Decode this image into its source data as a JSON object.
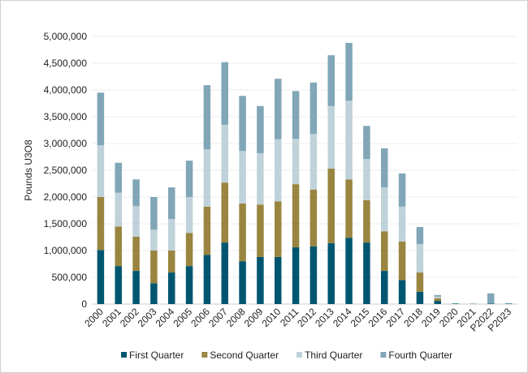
{
  "chart_data": {
    "type": "bar",
    "stacked": true,
    "title": "",
    "xlabel": "",
    "ylabel": "Pounds U3O8",
    "ylim": [
      0,
      5000000
    ],
    "yticks": [
      0,
      500000,
      1000000,
      1500000,
      2000000,
      2500000,
      3000000,
      3500000,
      4000000,
      4500000,
      5000000
    ],
    "ytick_labels": [
      "0",
      "500,000",
      "1,000,000",
      "1,500,000",
      "2,000,000",
      "2,500,000",
      "3,000,000",
      "3,500,000",
      "4,000,000",
      "4,500,000",
      "5,000,000"
    ],
    "grid": true,
    "legend_position": "bottom",
    "categories": [
      "2000",
      "2001",
      "2002",
      "2003",
      "2004",
      "2005",
      "2006",
      "2007",
      "2008",
      "2009",
      "2010",
      "2011",
      "2012",
      "2013",
      "2014",
      "2015",
      "2016",
      "2017",
      "2018",
      "2019",
      "2020",
      "2021",
      "P2022",
      "P2023"
    ],
    "series": [
      {
        "name": "First Quarter",
        "color": "#005670",
        "values": [
          1010000,
          710000,
          620000,
          390000,
          590000,
          710000,
          920000,
          1150000,
          800000,
          880000,
          880000,
          1060000,
          1080000,
          1140000,
          1240000,
          1150000,
          620000,
          450000,
          230000,
          60000,
          10000,
          0,
          10000,
          10000
        ]
      },
      {
        "name": "Second Quarter",
        "color": "#9A8540",
        "values": [
          990000,
          740000,
          640000,
          610000,
          410000,
          620000,
          900000,
          1120000,
          1080000,
          980000,
          1040000,
          1180000,
          1060000,
          1390000,
          1090000,
          790000,
          740000,
          720000,
          360000,
          50000,
          0,
          0,
          0,
          0
        ]
      },
      {
        "name": "Third Quarter",
        "color": "#BFD2D9",
        "values": [
          970000,
          630000,
          570000,
          390000,
          590000,
          670000,
          1070000,
          1080000,
          980000,
          960000,
          1160000,
          850000,
          1040000,
          1170000,
          1470000,
          770000,
          820000,
          650000,
          530000,
          30000,
          0,
          0,
          0,
          0
        ]
      },
      {
        "name": "Fourth Quarter",
        "color": "#80A6B7",
        "values": [
          980000,
          560000,
          500000,
          610000,
          590000,
          680000,
          1200000,
          1170000,
          1030000,
          880000,
          1130000,
          890000,
          960000,
          950000,
          1080000,
          620000,
          730000,
          620000,
          320000,
          30000,
          0,
          10000,
          190000,
          0
        ]
      }
    ]
  }
}
